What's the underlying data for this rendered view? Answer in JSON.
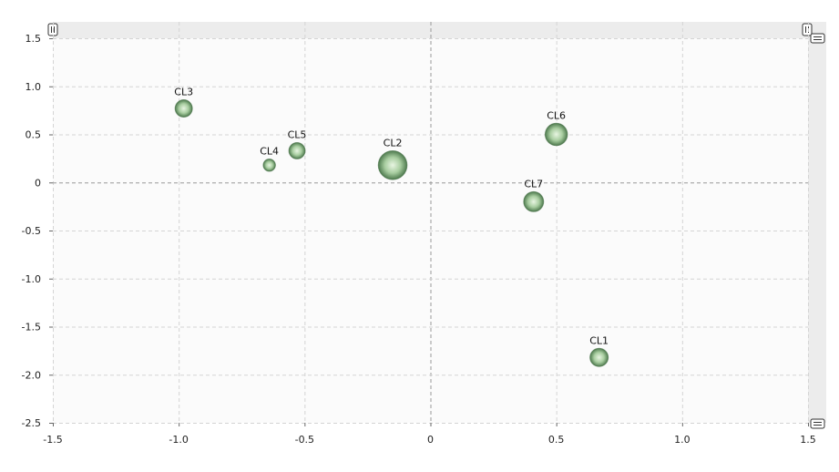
{
  "chart_data": {
    "type": "scatter",
    "subtype": "bubble",
    "xlim": [
      -1.5,
      1.5
    ],
    "ylim": [
      -2.5,
      1.5
    ],
    "x_ticks": [
      "-1.5",
      "-1.0",
      "-0.5",
      "0",
      "0.5",
      "1.0",
      "1.5"
    ],
    "y_ticks": [
      "1.5",
      "1.0",
      "0.5",
      "0",
      "-0.5",
      "-1.0",
      "-1.5",
      "-2.0",
      "-2.5"
    ],
    "grid": true,
    "points": [
      {
        "label": "CL1",
        "x": 0.67,
        "y": -1.82,
        "size": 1.0
      },
      {
        "label": "CL2",
        "x": -0.15,
        "y": 0.18,
        "size": 2.5
      },
      {
        "label": "CL3",
        "x": -0.98,
        "y": 0.77,
        "size": 0.9
      },
      {
        "label": "CL4",
        "x": -0.64,
        "y": 0.18,
        "size": 0.45
      },
      {
        "label": "CL5",
        "x": -0.53,
        "y": 0.33,
        "size": 0.8
      },
      {
        "label": "CL6",
        "x": 0.5,
        "y": 0.5,
        "size": 1.5
      },
      {
        "label": "CL7",
        "x": 0.41,
        "y": -0.2,
        "size": 1.2
      }
    ],
    "colors": {
      "bubble_center": "#e8f5e2",
      "bubble_mid": "#9dc596",
      "bubble_edge": "#4e7a4e",
      "grid": "#d4d4d4",
      "zero_line": "#9a9a9a",
      "scrollbar": "#ececec"
    }
  }
}
